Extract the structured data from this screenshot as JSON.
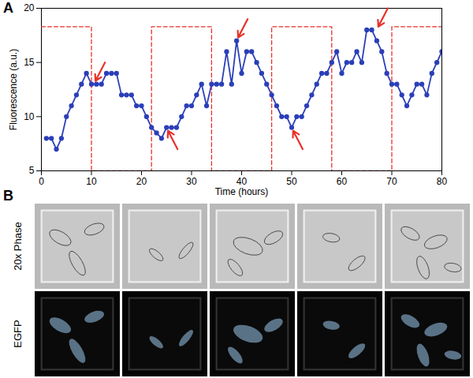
{
  "chart_data": {
    "type": "line",
    "panel_label": "A",
    "x_label": "Time (hours)",
    "y_label": "Fluorescence (a.u.)",
    "xlim": [
      0,
      80
    ],
    "ylim": [
      5,
      20
    ],
    "xticks": [
      0,
      10,
      20,
      30,
      40,
      50,
      60,
      70,
      80
    ],
    "yticks": [
      5,
      10,
      15,
      20
    ],
    "grid": false,
    "series": [
      {
        "color": "#e8312a",
        "line_style": "dashed",
        "marker": "none",
        "x": [
          0,
          10,
          10,
          22,
          22,
          34,
          34,
          46,
          46,
          58,
          58,
          70,
          70,
          80
        ],
        "values": [
          18.3,
          18.3,
          5,
          5,
          18.3,
          18.3,
          5,
          5,
          18.3,
          18.3,
          5,
          5,
          18.3,
          18.3
        ]
      },
      {
        "color": "#2b3fb8",
        "line_style": "solid",
        "marker": "circle",
        "x": [
          1,
          2,
          3,
          4,
          5,
          6,
          7,
          8,
          9,
          10,
          11,
          12,
          13,
          14,
          15,
          16,
          17,
          18,
          19,
          20,
          21,
          22,
          23,
          24,
          25,
          26,
          27,
          28,
          29,
          30,
          31,
          32,
          33,
          34,
          35,
          36,
          37,
          38,
          39,
          40,
          41,
          42,
          43,
          44,
          45,
          46,
          47,
          48,
          49,
          50,
          51,
          52,
          53,
          54,
          55,
          56,
          57,
          58,
          59,
          60,
          61,
          62,
          63,
          64,
          65,
          66,
          67,
          68,
          69,
          70,
          71,
          72,
          73,
          74,
          75,
          76,
          77,
          78,
          79,
          80
        ],
        "values": [
          8,
          8,
          7,
          8,
          10,
          11,
          12,
          13,
          14,
          13,
          13,
          13,
          14,
          14,
          14,
          12,
          12,
          12,
          11,
          11,
          10,
          9,
          8.5,
          8,
          9,
          9,
          9,
          10,
          11,
          11,
          12,
          13,
          11,
          13,
          13,
          13,
          16,
          13,
          17,
          14,
          16,
          16,
          15,
          14,
          13,
          12,
          11,
          10,
          10,
          9,
          10,
          10,
          11,
          12,
          13,
          14,
          14,
          15,
          16,
          14,
          15,
          15,
          16,
          15,
          18,
          18,
          17,
          16,
          14,
          13,
          13,
          12,
          11,
          12,
          13,
          13,
          12,
          14,
          15,
          16
        ]
      }
    ],
    "arrows": {
      "color": "#e8312a",
      "x": [
        10.5,
        25,
        39,
        50,
        67
      ],
      "y": [
        13,
        9,
        17,
        9,
        18
      ]
    }
  },
  "panel_b": {
    "label": "B",
    "rows": [
      "20x Phase",
      "EGFP"
    ]
  }
}
